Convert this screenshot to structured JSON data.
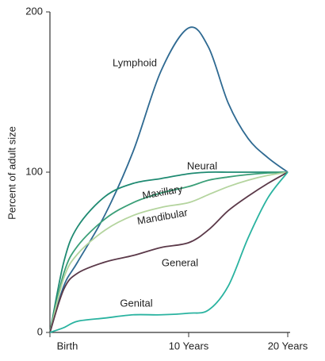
{
  "chart_data": {
    "type": "line",
    "y_label": "Percent of adult size",
    "x": [
      0,
      1,
      2,
      4,
      6,
      8,
      10,
      12,
      14,
      16,
      18,
      20
    ],
    "xlim": [
      0,
      20
    ],
    "xticks": [
      {
        "value": 0,
        "label": "Birth"
      },
      {
        "value": 10,
        "label": "10 Years"
      },
      {
        "value": 20,
        "label": "20 Years"
      }
    ],
    "ylim": [
      0,
      200
    ],
    "yticks": [
      0,
      100,
      200
    ],
    "series": [
      {
        "name": "Lymphoid",
        "color": "#2f6a92",
        "values": [
          0,
          29,
          44,
          74,
          113,
          163,
          190,
          178,
          143,
          121,
          109,
          100
        ]
      },
      {
        "name": "Neural",
        "color": "#1f8a72",
        "values": [
          0,
          44,
          66,
          85,
          93,
          96,
          99,
          100,
          100,
          100,
          100,
          100
        ]
      },
      {
        "name": "Maxillary",
        "color": "#3b9f78",
        "values": [
          0,
          37,
          54,
          71,
          81,
          87,
          91,
          95,
          97,
          98.5,
          99.5,
          100
        ]
      },
      {
        "name": "Mandibular",
        "color": "#b4d49e",
        "values": [
          0,
          34,
          49,
          64,
          73,
          78,
          81,
          86,
          91,
          95,
          98,
          100
        ]
      },
      {
        "name": "General",
        "color": "#5b3949",
        "values": [
          0,
          27,
          37,
          44,
          48,
          53,
          56,
          64,
          76,
          85,
          93,
          100
        ]
      },
      {
        "name": "Genital",
        "color": "#2ab3a0",
        "values": [
          0,
          3,
          7,
          9,
          11,
          11,
          12,
          14,
          29,
          59,
          84,
          100
        ]
      }
    ]
  }
}
